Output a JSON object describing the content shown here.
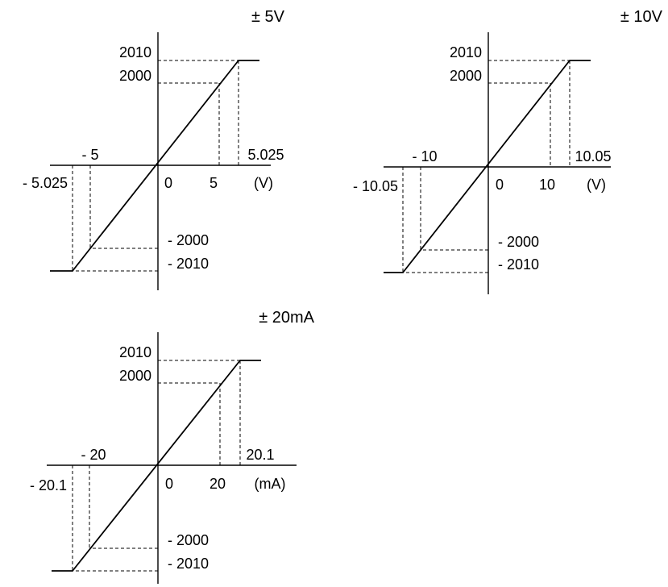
{
  "chart_data": [
    {
      "type": "line",
      "title": "± 5V",
      "x_unit": "(V)",
      "series": [
        {
          "x": [
            -5.4,
            -5.025,
            5.025,
            5.4
          ],
          "y": [
            -2010,
            -2010,
            2010,
            2010
          ]
        }
      ],
      "x_tick_labels": [
        "- 5",
        "0",
        "5",
        "5.025",
        "- 5.025"
      ],
      "y_tick_labels": [
        "2010",
        "2000",
        "- 2000",
        "- 2010"
      ],
      "reference_points": [
        {
          "x": 5,
          "y": 2000
        },
        {
          "x": 5.025,
          "y": 2010
        },
        {
          "x": -5,
          "y": -2000
        },
        {
          "x": -5.025,
          "y": -2010
        }
      ],
      "grid": false
    },
    {
      "type": "line",
      "title": "± 10V",
      "x_unit": "(V)",
      "series": [
        {
          "x": [
            -10.8,
            -10.05,
            10.05,
            10.8
          ],
          "y": [
            -2010,
            -2010,
            2010,
            2010
          ]
        }
      ],
      "x_tick_labels": [
        "- 10",
        "0",
        "10",
        "10.05",
        "- 10.05"
      ],
      "y_tick_labels": [
        "2010",
        "2000",
        "- 2000",
        "- 2010"
      ],
      "reference_points": [
        {
          "x": 10,
          "y": 2000
        },
        {
          "x": 10.05,
          "y": 2010
        },
        {
          "x": -10,
          "y": -2000
        },
        {
          "x": -10.05,
          "y": -2010
        }
      ],
      "grid": false
    },
    {
      "type": "line",
      "title": "± 20mA",
      "x_unit": "(mA)",
      "series": [
        {
          "x": [
            -21.6,
            -20.1,
            20.1,
            21.6
          ],
          "y": [
            -2010,
            -2010,
            2010,
            2010
          ]
        }
      ],
      "x_tick_labels": [
        "- 20",
        "0",
        "20",
        "20.1",
        "- 20.1"
      ],
      "y_tick_labels": [
        "2010",
        "2000",
        "- 2000",
        "- 2010"
      ],
      "reference_points": [
        {
          "x": 20,
          "y": 2000
        },
        {
          "x": 20.1,
          "y": 2010
        },
        {
          "x": -20,
          "y": -2000
        },
        {
          "x": -20.1,
          "y": -2010
        }
      ],
      "grid": false
    }
  ]
}
